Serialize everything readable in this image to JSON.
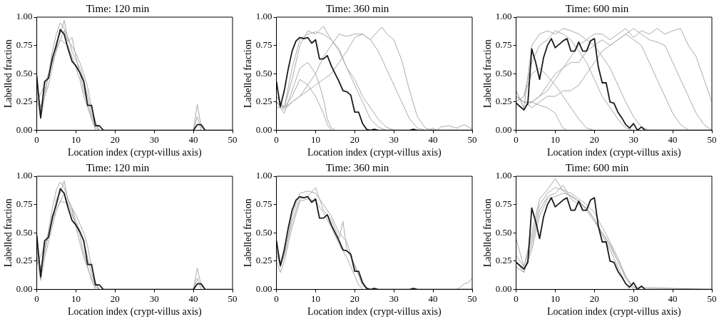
{
  "chart_data": [
    {
      "type": "line",
      "title": "Time: 120 min",
      "xlabel": "Location index (crypt-villus axis)",
      "ylabel": "Labelled fraction",
      "xlim": [
        0,
        50
      ],
      "xticks": [
        0,
        10,
        20,
        30,
        40,
        50
      ],
      "ylim": [
        0,
        1
      ],
      "yticks": [
        {
          "value": 0,
          "label": "0.00"
        },
        {
          "value": 0.25,
          "label": "0.25"
        },
        {
          "value": 0.5,
          "label": "0.50"
        },
        {
          "value": 0.75,
          "label": "0.75"
        },
        {
          "value": 1,
          "label": "1.00"
        }
      ],
      "grid": false,
      "legend": false,
      "marker": "none",
      "line_style": "solid",
      "series": [
        {
          "color": "#aaaaaa",
          "x": [
            0,
            1,
            2,
            3,
            4,
            5,
            6,
            7,
            8,
            9,
            10,
            11,
            12,
            13,
            14,
            15,
            16,
            17,
            50
          ],
          "values": [
            0.42,
            0.12,
            0.3,
            0.5,
            0.7,
            0.85,
            0.95,
            0.9,
            0.82,
            0.7,
            0.62,
            0.55,
            0.45,
            0.3,
            0.15,
            0.05,
            0,
            0,
            0
          ]
        },
        {
          "color": "#aaaaaa",
          "x": [
            0,
            1,
            2,
            4,
            5,
            6,
            7,
            8,
            10,
            11,
            12,
            13,
            14,
            15,
            16,
            50
          ],
          "values": [
            0.35,
            0.2,
            0.35,
            0.62,
            0.78,
            0.85,
            0.97,
            0.8,
            0.68,
            0.6,
            0.5,
            0.38,
            0.2,
            0.08,
            0,
            0
          ]
        },
        {
          "color": "#aaaaaa",
          "x": [
            0,
            1,
            2,
            3,
            5,
            7,
            8,
            9,
            10,
            12,
            14,
            15,
            16,
            40,
            41,
            42,
            43,
            50
          ],
          "values": [
            0.3,
            0.1,
            0.3,
            0.4,
            0.72,
            0.88,
            0.78,
            0.82,
            0.65,
            0.35,
            0.12,
            0.02,
            0,
            0,
            0.23,
            0.03,
            0,
            0
          ]
        },
        {
          "color": "#aaaaaa",
          "x": [
            0,
            2,
            4,
            6,
            8,
            9,
            10,
            11,
            12,
            13,
            14,
            15,
            40,
            41,
            42,
            50
          ],
          "values": [
            0.25,
            0.4,
            0.6,
            0.8,
            0.75,
            0.65,
            0.55,
            0.45,
            0.3,
            0.2,
            0.1,
            0,
            0,
            0.12,
            0,
            0
          ]
        },
        {
          "color": "#1a1a1a",
          "x": [
            0,
            1,
            2,
            3,
            4,
            5,
            6,
            7,
            8,
            9,
            10,
            11,
            12,
            13,
            14,
            15,
            16,
            17,
            18,
            19,
            20,
            21,
            22,
            23,
            24,
            25,
            26,
            27,
            28,
            29,
            30,
            31,
            32,
            33,
            34,
            35,
            36,
            37,
            38,
            39,
            40,
            41,
            42,
            43,
            44,
            45,
            46,
            47,
            48,
            49,
            50
          ],
          "values": [
            0.48,
            0.11,
            0.43,
            0.46,
            0.64,
            0.75,
            0.89,
            0.85,
            0.72,
            0.61,
            0.57,
            0.51,
            0.43,
            0.22,
            0.22,
            0.04,
            0.04,
            0,
            0,
            0,
            0,
            0,
            0,
            0,
            0,
            0,
            0,
            0,
            0,
            0,
            0,
            0,
            0,
            0,
            0,
            0,
            0,
            0,
            0,
            0,
            0,
            0.05,
            0.05,
            0,
            0,
            0,
            0,
            0,
            0,
            0,
            0
          ]
        }
      ]
    },
    {
      "type": "line",
      "title": "Time: 360 min",
      "xlabel": "Location index (crypt-villus axis)",
      "ylabel": "Labelled fraction",
      "xlim": [
        0,
        50
      ],
      "xticks": [
        0,
        10,
        20,
        30,
        40,
        50
      ],
      "ylim": [
        0,
        1
      ],
      "yticks": [
        {
          "value": 0,
          "label": "0.00"
        },
        {
          "value": 0.25,
          "label": "0.25"
        },
        {
          "value": 0.5,
          "label": "0.50"
        },
        {
          "value": 0.75,
          "label": "0.75"
        },
        {
          "value": 1,
          "label": "1.00"
        }
      ],
      "grid": false,
      "legend": false,
      "marker": "none",
      "line_style": "solid",
      "series": [
        {
          "color": "#aaaaaa",
          "x": [
            0,
            2,
            4,
            6,
            8,
            10,
            12,
            14,
            16,
            18,
            20,
            22,
            24,
            26,
            28,
            50
          ],
          "values": [
            0.3,
            0.2,
            0.55,
            0.8,
            0.85,
            0.87,
            0.85,
            0.8,
            0.7,
            0.55,
            0.4,
            0.25,
            0.1,
            0.03,
            0,
            0
          ]
        },
        {
          "color": "#aaaaaa",
          "x": [
            0,
            2,
            4,
            6,
            8,
            10,
            11,
            12,
            13,
            14,
            15,
            50
          ],
          "values": [
            0.25,
            0.15,
            0.35,
            0.55,
            0.6,
            0.5,
            0.4,
            0.28,
            0.1,
            0.02,
            0,
            0
          ]
        },
        {
          "color": "#aaaaaa",
          "x": [
            0,
            2,
            4,
            6,
            8,
            10,
            12,
            14,
            16,
            18,
            20,
            22,
            24,
            26,
            28,
            30,
            32,
            34,
            36,
            38,
            50
          ],
          "values": [
            0.25,
            0.2,
            0.25,
            0.3,
            0.4,
            0.5,
            0.65,
            0.75,
            0.85,
            0.83,
            0.85,
            0.85,
            0.8,
            0.7,
            0.55,
            0.4,
            0.25,
            0.1,
            0.02,
            0,
            0
          ]
        },
        {
          "color": "#aaaaaa",
          "x": [
            0,
            2,
            4,
            6,
            8,
            10,
            12,
            14,
            16,
            18,
            20,
            22,
            24,
            26,
            27,
            28,
            30,
            32,
            34,
            36,
            38,
            40,
            50
          ],
          "values": [
            0.25,
            0.18,
            0.25,
            0.3,
            0.35,
            0.4,
            0.45,
            0.5,
            0.6,
            0.7,
            0.82,
            0.85,
            0.8,
            0.88,
            0.91,
            0.86,
            0.8,
            0.62,
            0.35,
            0.12,
            0.02,
            0,
            0
          ]
        },
        {
          "color": "#aaaaaa",
          "x": [
            0,
            2,
            4,
            6,
            8,
            10,
            12,
            14,
            16,
            18,
            20,
            22,
            24,
            26,
            28,
            30,
            50
          ],
          "values": [
            0.2,
            0.2,
            0.45,
            0.75,
            0.88,
            0.85,
            0.92,
            0.8,
            0.72,
            0.55,
            0.45,
            0.3,
            0.2,
            0.1,
            0.03,
            0,
            0
          ]
        },
        {
          "color": "#aaaaaa",
          "x": [
            0,
            2,
            4,
            6,
            8,
            10,
            12,
            13,
            14,
            50
          ],
          "values": [
            0.3,
            0.2,
            0.3,
            0.45,
            0.4,
            0.3,
            0.15,
            0.05,
            0,
            0
          ]
        },
        {
          "color": "#aaaaaa",
          "x": [
            39,
            40,
            41,
            42,
            44,
            46,
            48,
            50
          ],
          "values": [
            0,
            0.02,
            0,
            0.03,
            0.04,
            0.02,
            0.05,
            0.01
          ]
        },
        {
          "color": "#1a1a1a",
          "x": [
            0,
            1,
            2,
            3,
            4,
            5,
            6,
            7,
            8,
            9,
            10,
            11,
            12,
            13,
            14,
            15,
            16,
            17,
            18,
            19,
            20,
            21,
            22,
            23,
            24,
            25,
            26,
            27,
            28,
            29,
            30,
            31,
            32,
            33,
            34,
            35,
            36,
            37,
            38,
            39,
            40,
            41,
            42,
            43,
            44,
            45,
            46,
            47,
            48,
            49,
            50
          ],
          "values": [
            0.43,
            0.21,
            0.35,
            0.54,
            0.7,
            0.79,
            0.82,
            0.81,
            0.82,
            0.77,
            0.8,
            0.63,
            0.63,
            0.66,
            0.57,
            0.5,
            0.43,
            0.35,
            0.34,
            0.31,
            0.16,
            0.16,
            0.06,
            0.01,
            0,
            0.01,
            0,
            0,
            0,
            0,
            0,
            0,
            0,
            0,
            0,
            0.01,
            0,
            0,
            0,
            0,
            0,
            0,
            0,
            0,
            0,
            0,
            0,
            0,
            0,
            0,
            0
          ]
        }
      ]
    },
    {
      "type": "line",
      "title": "Time: 600 min",
      "xlabel": "Location index (crypt-villus axis)",
      "ylabel": "Labelled fraction",
      "xlim": [
        0,
        50
      ],
      "xticks": [
        0,
        10,
        20,
        30,
        40,
        50
      ],
      "ylim": [
        0,
        1
      ],
      "yticks": [
        {
          "value": 0,
          "label": "0.00"
        },
        {
          "value": 0.25,
          "label": "0.25"
        },
        {
          "value": 0.5,
          "label": "0.50"
        },
        {
          "value": 0.75,
          "label": "0.75"
        },
        {
          "value": 1,
          "label": "1.00"
        }
      ],
      "grid": false,
      "legend": false,
      "marker": "none",
      "line_style": "solid",
      "series": [
        {
          "color": "#aaaaaa",
          "x": [
            0,
            2,
            4,
            6,
            8,
            10,
            12,
            14,
            16,
            18,
            20,
            22,
            24,
            26,
            28,
            30,
            32,
            34,
            36,
            38,
            40,
            42,
            44,
            46,
            48,
            50
          ],
          "values": [
            0.3,
            0.25,
            0.25,
            0.3,
            0.35,
            0.45,
            0.55,
            0.65,
            0.75,
            0.8,
            0.85,
            0.85,
            0.8,
            0.85,
            0.9,
            0.82,
            0.88,
            0.85,
            0.9,
            0.85,
            0.88,
            0.9,
            0.75,
            0.65,
            0.45,
            0.25
          ]
        },
        {
          "color": "#aaaaaa",
          "x": [
            0,
            2,
            4,
            6,
            8,
            10,
            12,
            14,
            16,
            18,
            20,
            22,
            24,
            26,
            28,
            30,
            32,
            34,
            36,
            50
          ],
          "values": [
            0.35,
            0.2,
            0.75,
            0.85,
            0.88,
            0.85,
            0.9,
            0.88,
            0.85,
            0.8,
            0.75,
            0.65,
            0.55,
            0.4,
            0.25,
            0.12,
            0.03,
            0,
            0,
            0
          ]
        },
        {
          "color": "#aaaaaa",
          "x": [
            0,
            2,
            4,
            6,
            8,
            10,
            11,
            12,
            13
          ],
          "values": [
            0.3,
            0.25,
            0.25,
            0.22,
            0.2,
            0.15,
            0.08,
            0.02,
            0
          ]
        },
        {
          "color": "#aaaaaa",
          "x": [
            0,
            2,
            4,
            6,
            8,
            10,
            12,
            14,
            16,
            18,
            20,
            22,
            24,
            26,
            28,
            30,
            32,
            34,
            36,
            38,
            40,
            42,
            44,
            50
          ],
          "values": [
            0.35,
            0.2,
            0.25,
            0.3,
            0.4,
            0.5,
            0.55,
            0.6,
            0.6,
            0.7,
            0.75,
            0.8,
            0.75,
            0.8,
            0.85,
            0.8,
            0.75,
            0.6,
            0.45,
            0.3,
            0.15,
            0.05,
            0,
            0
          ]
        },
        {
          "color": "#aaaaaa",
          "x": [
            0,
            2,
            4,
            6,
            8,
            10,
            12,
            14,
            16,
            18,
            20,
            22,
            24,
            26,
            28,
            30,
            50
          ],
          "values": [
            0.25,
            0.3,
            0.6,
            0.75,
            0.8,
            0.88,
            0.85,
            0.8,
            0.7,
            0.6,
            0.45,
            0.3,
            0.2,
            0.1,
            0.02,
            0,
            0
          ]
        },
        {
          "color": "#aaaaaa",
          "x": [
            0,
            2,
            4,
            6,
            8,
            10,
            12,
            14,
            16,
            18,
            20,
            22,
            24,
            26,
            28,
            30,
            32,
            34,
            36,
            38,
            40,
            42,
            44,
            46,
            48,
            50
          ],
          "values": [
            0.3,
            0.25,
            0.2,
            0.25,
            0.3,
            0.3,
            0.35,
            0.35,
            0.4,
            0.5,
            0.6,
            0.7,
            0.75,
            0.8,
            0.85,
            0.9,
            0.85,
            0.8,
            0.78,
            0.75,
            0.6,
            0.45,
            0.3,
            0.15,
            0.05,
            0
          ]
        },
        {
          "color": "#aaaaaa",
          "x": [
            0,
            2,
            4,
            6,
            8,
            10,
            12,
            14,
            16,
            18,
            20,
            50
          ],
          "values": [
            0.25,
            0.3,
            0.5,
            0.55,
            0.48,
            0.4,
            0.3,
            0.2,
            0.1,
            0.02,
            0,
            0
          ]
        },
        {
          "color": "#1a1a1a",
          "x": [
            0,
            1,
            2,
            3,
            4,
            5,
            6,
            7,
            8,
            9,
            10,
            11,
            12,
            13,
            14,
            15,
            16,
            17,
            18,
            19,
            20,
            21,
            22,
            23,
            24,
            25,
            26,
            27,
            28,
            29,
            30,
            31,
            32,
            33,
            34,
            35,
            36,
            37,
            38,
            39,
            40,
            41,
            42,
            43,
            44,
            45,
            46,
            47,
            48,
            49,
            50
          ],
          "values": [
            0.24,
            0.21,
            0.18,
            0.24,
            0.72,
            0.6,
            0.45,
            0.64,
            0.75,
            0.81,
            0.73,
            0.76,
            0.79,
            0.81,
            0.7,
            0.7,
            0.78,
            0.7,
            0.7,
            0.79,
            0.81,
            0.56,
            0.42,
            0.42,
            0.25,
            0.24,
            0.16,
            0.11,
            0.05,
            0.02,
            0.06,
            0,
            0.03,
            0,
            0,
            0,
            0,
            0,
            0,
            0,
            0,
            0,
            0,
            0,
            0,
            0,
            0,
            0,
            0,
            0,
            0
          ]
        }
      ]
    },
    {
      "type": "line",
      "title": "Time: 120 min",
      "xlabel": "Location index (crypt-villus axis)",
      "ylabel": "Labelled fraction",
      "xlim": [
        0,
        50
      ],
      "xticks": [
        0,
        10,
        20,
        30,
        40,
        50
      ],
      "ylim": [
        0,
        1
      ],
      "yticks": [
        {
          "value": 0,
          "label": "0.00"
        },
        {
          "value": 0.25,
          "label": "0.25"
        },
        {
          "value": 0.5,
          "label": "0.50"
        },
        {
          "value": 0.75,
          "label": "0.75"
        },
        {
          "value": 1,
          "label": "1.00"
        }
      ],
      "grid": false,
      "legend": false,
      "marker": "none",
      "line_style": "solid",
      "series": [
        {
          "color": "#aaaaaa",
          "x": [
            0,
            1,
            2,
            3,
            4,
            5,
            6,
            7,
            8,
            9,
            10,
            11,
            12,
            13,
            14,
            15,
            16,
            50
          ],
          "values": [
            0.4,
            0.15,
            0.32,
            0.52,
            0.72,
            0.88,
            0.95,
            0.9,
            0.8,
            0.72,
            0.6,
            0.52,
            0.42,
            0.28,
            0.14,
            0.04,
            0,
            0
          ]
        },
        {
          "color": "#aaaaaa",
          "x": [
            0,
            1,
            2,
            4,
            5,
            6,
            7,
            8,
            10,
            11,
            12,
            13,
            14,
            15,
            16,
            50
          ],
          "values": [
            0.35,
            0.18,
            0.35,
            0.6,
            0.8,
            0.85,
            0.96,
            0.78,
            0.66,
            0.58,
            0.5,
            0.38,
            0.2,
            0.06,
            0,
            0
          ]
        },
        {
          "color": "#aaaaaa",
          "x": [
            0,
            1,
            2,
            3,
            5,
            7,
            8,
            9,
            10,
            12,
            14,
            15,
            16,
            40,
            41,
            42,
            43,
            50
          ],
          "values": [
            0.3,
            0.08,
            0.28,
            0.42,
            0.7,
            0.85,
            0.75,
            0.7,
            0.55,
            0.28,
            0.1,
            0.02,
            0,
            0,
            0.19,
            0.03,
            0,
            0
          ]
        },
        {
          "color": "#aaaaaa",
          "x": [
            0,
            2,
            4,
            6,
            8,
            9,
            10,
            11,
            12,
            13,
            14,
            15,
            40,
            41,
            42,
            50
          ],
          "values": [
            0.22,
            0.38,
            0.62,
            0.78,
            0.76,
            0.66,
            0.58,
            0.48,
            0.32,
            0.2,
            0.08,
            0,
            0,
            0.1,
            0,
            0
          ]
        },
        {
          "color": "#1a1a1a",
          "x": [
            0,
            1,
            2,
            3,
            4,
            5,
            6,
            7,
            8,
            9,
            10,
            11,
            12,
            13,
            14,
            15,
            16,
            17,
            18,
            19,
            20,
            21,
            22,
            23,
            24,
            25,
            26,
            27,
            28,
            29,
            30,
            31,
            32,
            33,
            34,
            35,
            36,
            37,
            38,
            39,
            40,
            41,
            42,
            43,
            44,
            45,
            46,
            47,
            48,
            49,
            50
          ],
          "values": [
            0.48,
            0.11,
            0.43,
            0.46,
            0.64,
            0.75,
            0.89,
            0.85,
            0.72,
            0.61,
            0.57,
            0.51,
            0.43,
            0.22,
            0.22,
            0.04,
            0.04,
            0,
            0,
            0,
            0,
            0,
            0,
            0,
            0,
            0,
            0,
            0,
            0,
            0,
            0,
            0,
            0,
            0,
            0,
            0,
            0,
            0,
            0,
            0,
            0,
            0.05,
            0.05,
            0,
            0,
            0,
            0,
            0,
            0,
            0,
            0
          ]
        }
      ]
    },
    {
      "type": "line",
      "title": "Time: 360 min",
      "xlabel": "Location index (crypt-villus axis)",
      "ylabel": "Labelled fraction",
      "xlim": [
        0,
        50
      ],
      "xticks": [
        0,
        10,
        20,
        30,
        40,
        50
      ],
      "ylim": [
        0,
        1
      ],
      "yticks": [
        {
          "value": 0,
          "label": "0.00"
        },
        {
          "value": 0.25,
          "label": "0.25"
        },
        {
          "value": 0.5,
          "label": "0.50"
        },
        {
          "value": 0.75,
          "label": "0.75"
        },
        {
          "value": 1,
          "label": "1.00"
        }
      ],
      "grid": false,
      "legend": false,
      "marker": "none",
      "line_style": "solid",
      "series": [
        {
          "color": "#aaaaaa",
          "x": [
            0,
            1,
            2,
            4,
            6,
            8,
            10,
            12,
            14,
            16,
            18,
            20,
            22,
            23,
            24,
            50
          ],
          "values": [
            0.35,
            0.2,
            0.3,
            0.65,
            0.85,
            0.87,
            0.85,
            0.75,
            0.65,
            0.5,
            0.42,
            0.2,
            0.05,
            0.02,
            0,
            0
          ]
        },
        {
          "color": "#aaaaaa",
          "x": [
            0,
            1,
            2,
            4,
            6,
            8,
            10,
            12,
            14,
            16,
            17,
            18,
            20,
            22,
            24,
            50
          ],
          "values": [
            0.3,
            0.22,
            0.3,
            0.6,
            0.8,
            0.82,
            0.9,
            0.7,
            0.62,
            0.45,
            0.6,
            0.35,
            0.22,
            0.03,
            0,
            0
          ]
        },
        {
          "color": "#aaaaaa",
          "x": [
            0,
            1,
            2,
            4,
            6,
            8,
            10,
            12,
            14,
            16,
            18,
            20,
            21,
            22,
            50
          ],
          "values": [
            0.25,
            0.15,
            0.25,
            0.55,
            0.78,
            0.8,
            0.78,
            0.68,
            0.55,
            0.4,
            0.28,
            0.12,
            0.04,
            0,
            0
          ]
        },
        {
          "color": "#aaaaaa",
          "x": [
            0,
            46,
            47,
            48,
            49,
            50
          ],
          "values": [
            0,
            0,
            0.02,
            0.05,
            0.06,
            0.1
          ]
        },
        {
          "color": "#1a1a1a",
          "x": [
            0,
            1,
            2,
            3,
            4,
            5,
            6,
            7,
            8,
            9,
            10,
            11,
            12,
            13,
            14,
            15,
            16,
            17,
            18,
            19,
            20,
            21,
            22,
            23,
            24,
            25,
            26,
            27,
            28,
            29,
            30,
            31,
            32,
            33,
            34,
            35,
            36,
            37,
            38,
            39,
            40,
            41,
            42,
            43,
            44,
            45,
            46,
            47,
            48,
            49,
            50
          ],
          "values": [
            0.43,
            0.21,
            0.35,
            0.54,
            0.7,
            0.79,
            0.82,
            0.81,
            0.82,
            0.77,
            0.8,
            0.63,
            0.63,
            0.66,
            0.57,
            0.5,
            0.43,
            0.35,
            0.34,
            0.31,
            0.16,
            0.16,
            0.06,
            0.01,
            0,
            0.01,
            0,
            0,
            0,
            0,
            0,
            0,
            0,
            0,
            0,
            0.01,
            0,
            0,
            0,
            0,
            0,
            0,
            0,
            0,
            0,
            0,
            0,
            0,
            0,
            0,
            0
          ]
        }
      ]
    },
    {
      "type": "line",
      "title": "Time: 600 min",
      "xlabel": "Location index (crypt-villus axis)",
      "ylabel": "Labelled fraction",
      "xlim": [
        0,
        50
      ],
      "xticks": [
        0,
        10,
        20,
        30,
        40,
        50
      ],
      "ylim": [
        0,
        1
      ],
      "yticks": [
        {
          "value": 0,
          "label": "0.00"
        },
        {
          "value": 0.25,
          "label": "0.25"
        },
        {
          "value": 0.5,
          "label": "0.50"
        },
        {
          "value": 0.75,
          "label": "0.75"
        },
        {
          "value": 1,
          "label": "1.00"
        }
      ],
      "grid": false,
      "legend": false,
      "marker": "none",
      "line_style": "solid",
      "series": [
        {
          "color": "#aaaaaa",
          "x": [
            0,
            2,
            4,
            6,
            8,
            10,
            12,
            14,
            16,
            18,
            20,
            22,
            24,
            26,
            28,
            30,
            31,
            50
          ],
          "values": [
            0.3,
            0.2,
            0.45,
            0.75,
            0.85,
            0.9,
            0.88,
            0.85,
            0.8,
            0.75,
            0.68,
            0.55,
            0.42,
            0.28,
            0.12,
            0.02,
            0,
            0
          ]
        },
        {
          "color": "#aaaaaa",
          "x": [
            0,
            2,
            4,
            6,
            8,
            10,
            12,
            14,
            16,
            18,
            20,
            22,
            24,
            26,
            28,
            29,
            50
          ],
          "values": [
            0.25,
            0.15,
            0.4,
            0.7,
            0.82,
            0.85,
            0.92,
            0.8,
            0.75,
            0.72,
            0.62,
            0.48,
            0.35,
            0.2,
            0.05,
            0,
            0
          ]
        },
        {
          "color": "#aaaaaa",
          "x": [
            0,
            2,
            4,
            6,
            8,
            10,
            12,
            14,
            16,
            18,
            20,
            22,
            24,
            26,
            28,
            30,
            50
          ],
          "values": [
            0.45,
            0.2,
            0.5,
            0.8,
            0.88,
            0.98,
            0.87,
            0.82,
            0.78,
            0.7,
            0.6,
            0.5,
            0.38,
            0.25,
            0.1,
            0,
            0
          ]
        },
        {
          "color": "#aaaaaa",
          "x": [
            0,
            2,
            4,
            6,
            8,
            10,
            12,
            14,
            16,
            18,
            20,
            22,
            24,
            26,
            28,
            30,
            50
          ],
          "values": [
            0.2,
            0.15,
            0.35,
            0.65,
            0.8,
            0.82,
            0.85,
            0.83,
            0.78,
            0.72,
            0.62,
            0.5,
            0.4,
            0.25,
            0.1,
            0.02,
            0
          ]
        },
        {
          "color": "#1a1a1a",
          "x": [
            0,
            1,
            2,
            3,
            4,
            5,
            6,
            7,
            8,
            9,
            10,
            11,
            12,
            13,
            14,
            15,
            16,
            17,
            18,
            19,
            20,
            21,
            22,
            23,
            24,
            25,
            26,
            27,
            28,
            29,
            30,
            31,
            32,
            33,
            34,
            35,
            36,
            37,
            38,
            39,
            40,
            41,
            42,
            43,
            44,
            45,
            46,
            47,
            48,
            49,
            50
          ],
          "values": [
            0.24,
            0.21,
            0.18,
            0.24,
            0.72,
            0.6,
            0.45,
            0.64,
            0.75,
            0.81,
            0.73,
            0.76,
            0.79,
            0.81,
            0.7,
            0.7,
            0.78,
            0.7,
            0.7,
            0.79,
            0.81,
            0.56,
            0.42,
            0.42,
            0.25,
            0.24,
            0.16,
            0.11,
            0.05,
            0.02,
            0.06,
            0,
            0.03,
            0,
            0,
            0,
            0,
            0,
            0,
            0,
            0,
            0,
            0,
            0,
            0,
            0,
            0,
            0,
            0,
            0,
            0
          ]
        }
      ]
    }
  ]
}
